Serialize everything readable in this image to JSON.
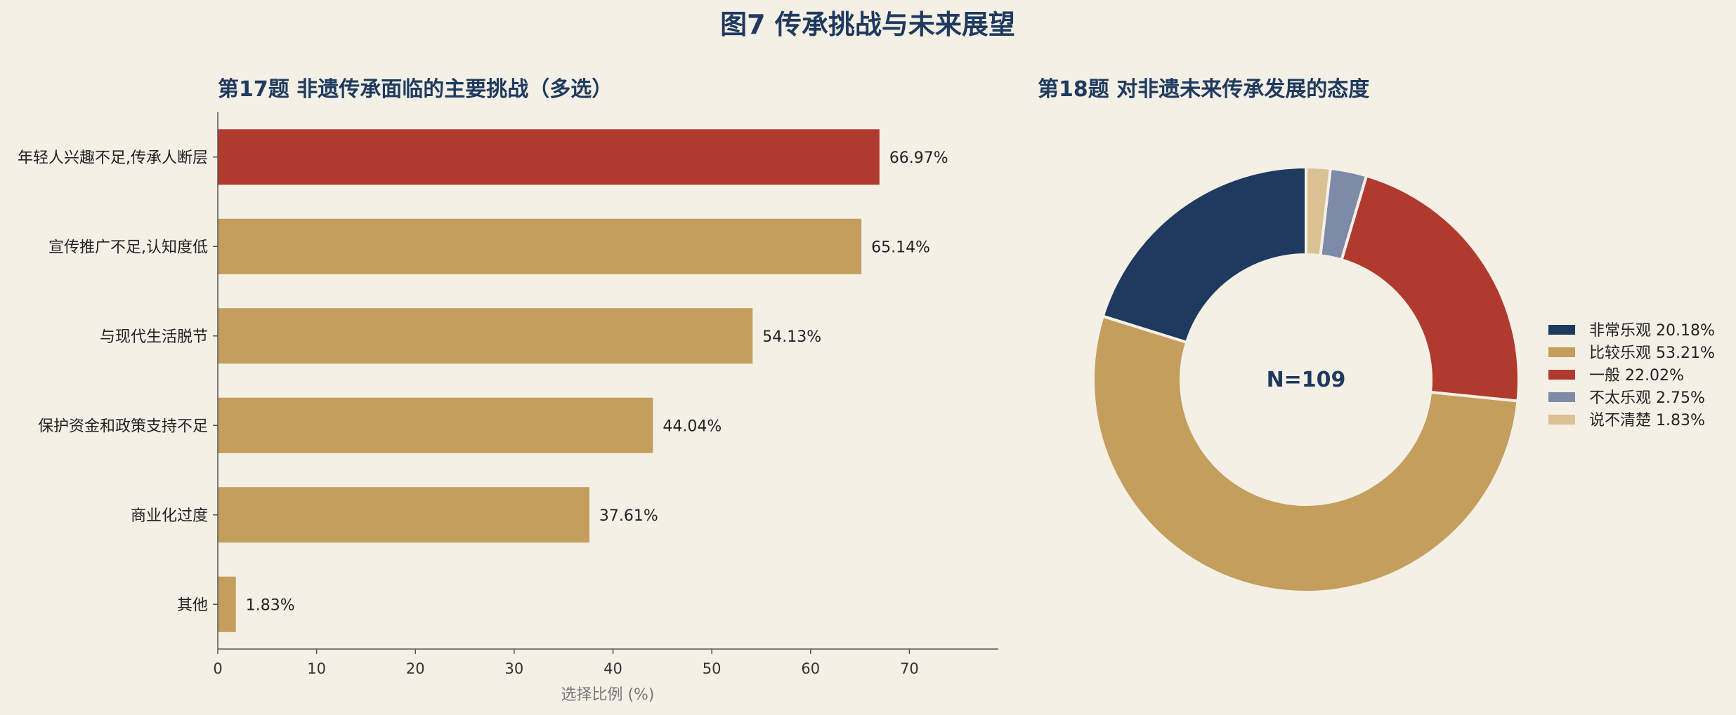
{
  "figure_title": "图7 传承挑战与未来展望",
  "chart_data": [
    {
      "type": "bar",
      "orientation": "horizontal",
      "title": "第17题 非遗传承面临的主要挑战（多选）",
      "categories": [
        "年轻人兴趣不足,传承人断层",
        "宣传推广不足,认知度低",
        "与现代生活脱节",
        "保护资金和政策支持不足",
        "商业化过度",
        "其他"
      ],
      "values": [
        66.97,
        65.14,
        54.13,
        44.04,
        37.61,
        1.83
      ],
      "value_labels": [
        "66.97%",
        "65.14%",
        "54.13%",
        "44.04%",
        "37.61%",
        "1.83%"
      ],
      "colors": [
        "#b03a2e",
        "#c49e5c",
        "#c49e5c",
        "#c49e5c",
        "#c49e5c",
        "#c49e5c"
      ],
      "xlabel": "选择比例 (%)",
      "ylabel": "",
      "xlim": [
        0,
        79
      ],
      "xticks": [
        0,
        10,
        20,
        30,
        40,
        50,
        60,
        70
      ],
      "xtick_labels": [
        "0",
        "10",
        "20",
        "30",
        "40",
        "50",
        "60",
        "70"
      ],
      "grid": false
    },
    {
      "type": "pie",
      "donut": true,
      "title": "第18题 对非遗未来传承发展的态度",
      "center_label": "N=109",
      "categories": [
        "非常乐观",
        "比较乐观",
        "一般",
        "不太乐观",
        "说不清楚"
      ],
      "values": [
        20.18,
        53.21,
        22.02,
        2.75,
        1.83
      ],
      "legend_labels": [
        "非常乐观  20.18%",
        "比较乐观  53.21%",
        "一般  22.02%",
        "不太乐观  2.75%",
        "说不清楚  1.83%"
      ],
      "colors": [
        "#1e3a5f",
        "#c49e5c",
        "#b03a2e",
        "#7d8aa8",
        "#d9c193"
      ],
      "start_angle": "12 o'clock",
      "direction": "counterclockwise",
      "legend_position": "right"
    }
  ]
}
